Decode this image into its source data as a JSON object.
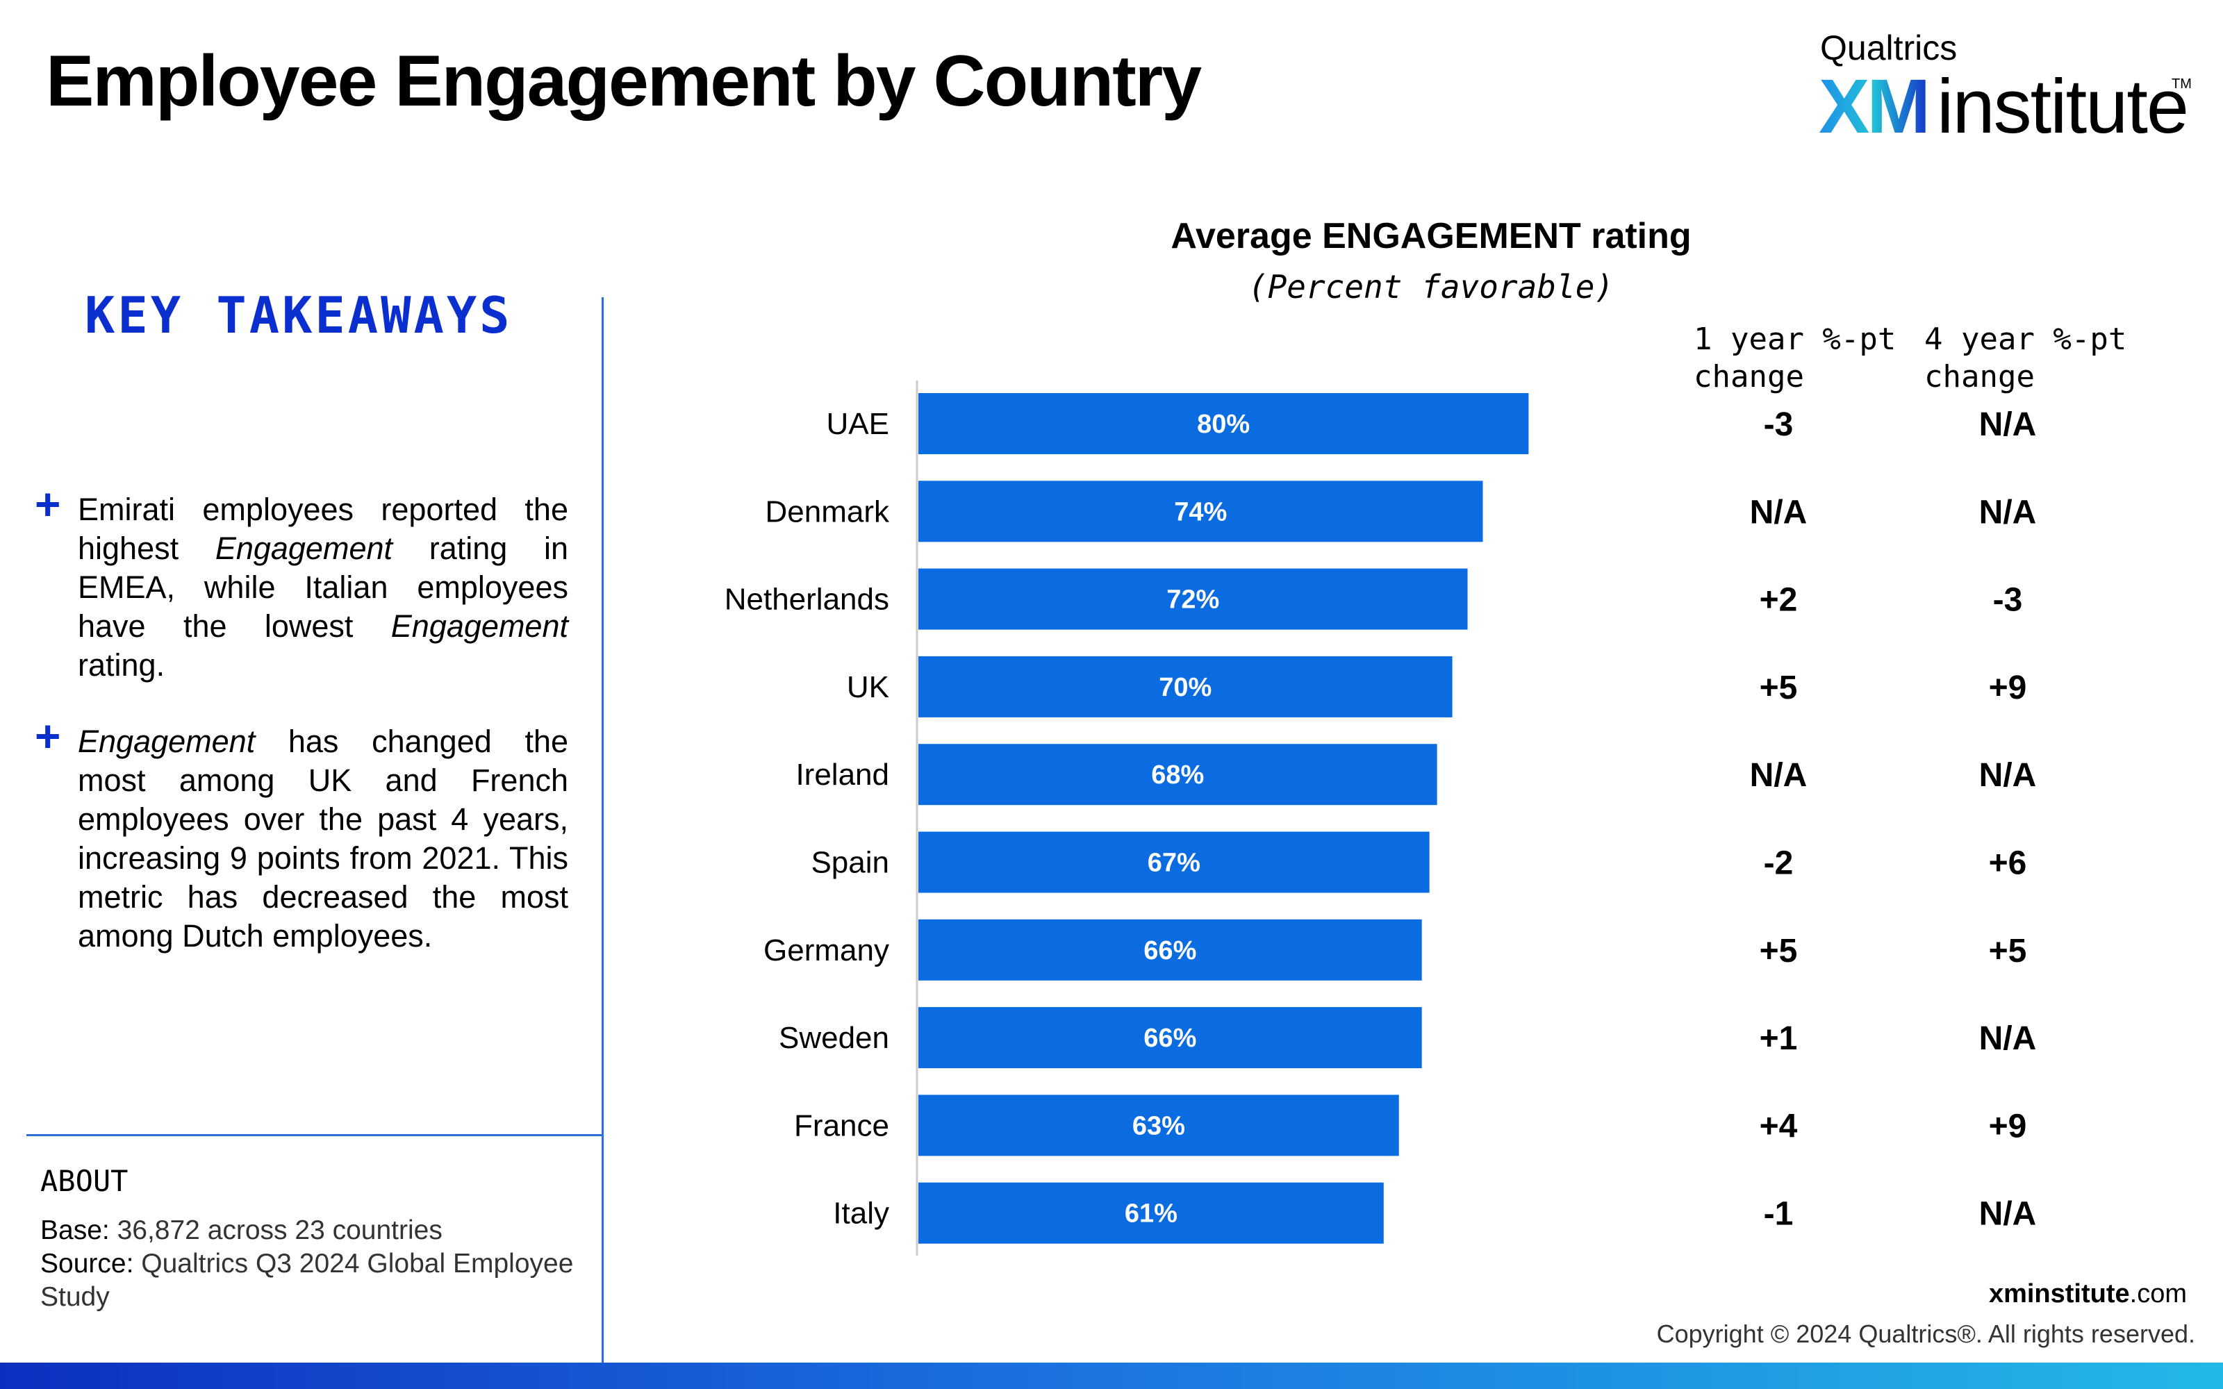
{
  "title": "Employee Engagement by Country",
  "logo": {
    "brand": "Qualtrics",
    "xm": "XM",
    "institute": "institute",
    "tm": "TM"
  },
  "takeaways": {
    "heading": "KEY TAKEAWAYS",
    "bullets": [
      {
        "plus": "+",
        "p1": "Emirati employees reported the highest ",
        "em1": "Engagement",
        "p2": " rating in EMEA, while Italian employees have the lowest ",
        "em2": "Engagement",
        "p3": " rating."
      },
      {
        "plus": "+",
        "em1": "Engagement",
        "p1": " has changed the most among UK and French employees over the past 4 years, increasing 9 points from 2021. This metric has decreased the most among Dutch employees."
      }
    ]
  },
  "about": {
    "heading": "ABOUT",
    "base_key": "Base:",
    "base_val": " 36,872 across 23 countries",
    "source_key": "Source:",
    "source_val": " Qualtrics Q3 2024 Global Employee Study"
  },
  "chart_data": {
    "type": "bar",
    "orientation": "horizontal",
    "title": "Average ENGAGEMENT rating",
    "subtitle": "(Percent favorable)",
    "categories": [
      "UAE",
      "Denmark",
      "Netherlands",
      "UK",
      "Ireland",
      "Spain",
      "Germany",
      "Sweden",
      "France",
      "Italy"
    ],
    "values": [
      80,
      74,
      72,
      70,
      68,
      67,
      66,
      66,
      63,
      61
    ],
    "value_labels": [
      "80%",
      "74%",
      "72%",
      "70%",
      "68%",
      "67%",
      "66%",
      "66%",
      "63%",
      "61%"
    ],
    "xlim": [
      0,
      100
    ],
    "bar_color": "#0a6ce0",
    "columns": [
      {
        "header": "1 year %-pt change",
        "values": [
          "-3",
          "N/A",
          "+2",
          "+5",
          "N/A",
          "-2",
          "+5",
          "+1",
          "+4",
          "-1"
        ]
      },
      {
        "header": "4 year %-pt change",
        "values": [
          "N/A",
          "N/A",
          "-3",
          "+9",
          "N/A",
          "+6",
          "+5",
          "N/A",
          "+9",
          "N/A"
        ]
      }
    ]
  },
  "footer": {
    "url_bold": "xminstitute",
    "url_rest": ".com",
    "copyright": "Copyright © 2024 Qualtrics®. All rights reserved."
  },
  "colors": {
    "accent": "#0b2fcf",
    "divider": "#2b6fd6",
    "bar": "#0a6ce0"
  }
}
